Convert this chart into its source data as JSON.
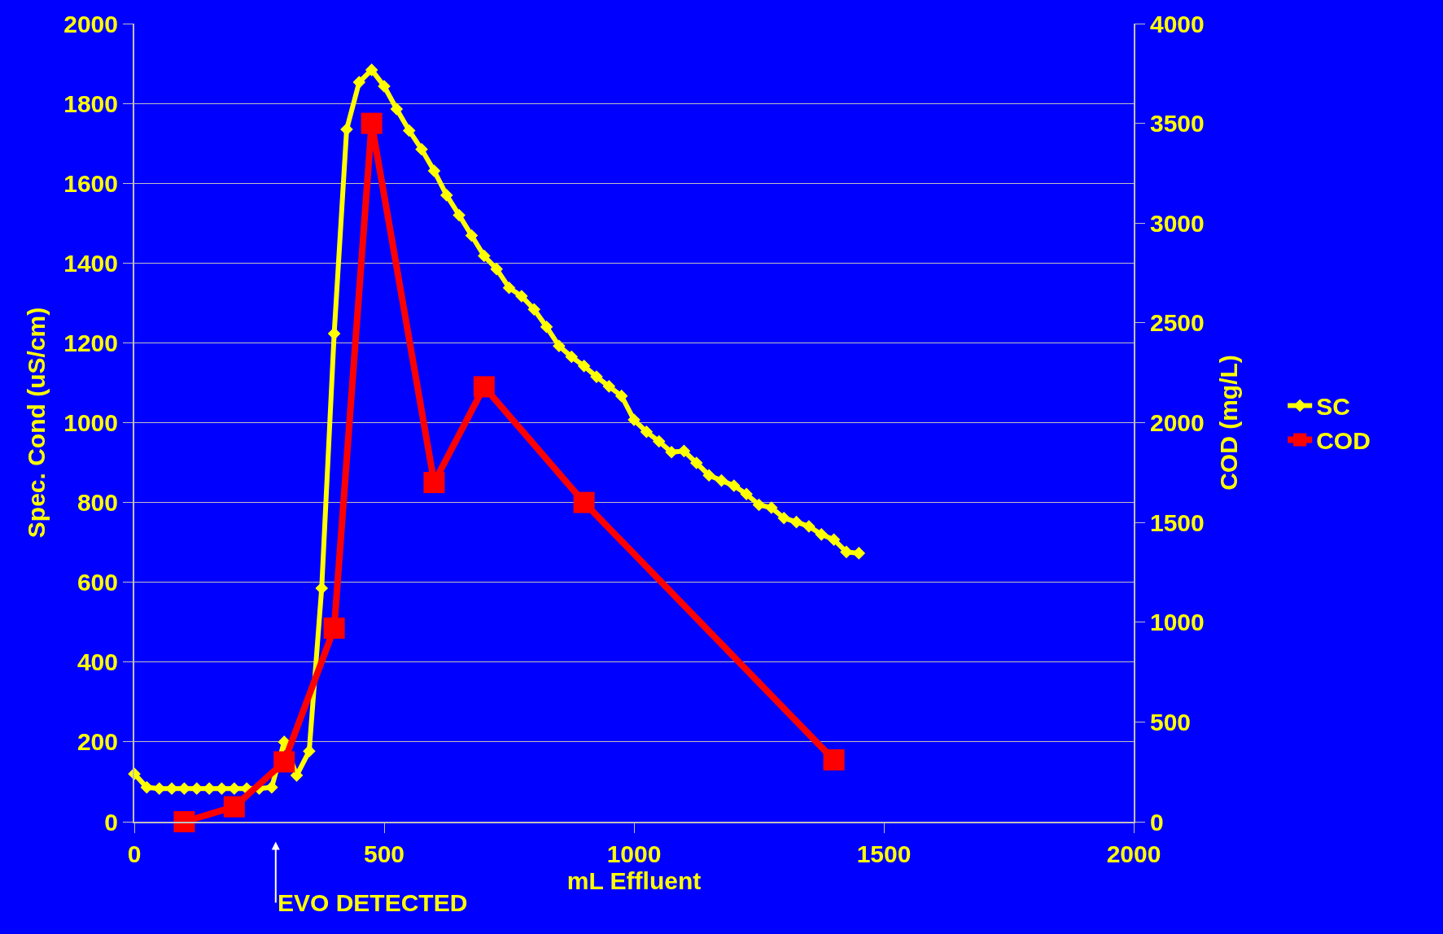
{
  "chart_data": {
    "type": "line",
    "xlabel": "mL Effluent",
    "ylabel": "Spec. Cond (uS/cm)",
    "y2label": "COD (mg/L)",
    "xlim": [
      0,
      2000
    ],
    "xticks": [
      0,
      500,
      1000,
      1500,
      2000
    ],
    "ylim": [
      0,
      2000
    ],
    "yticks": [
      0,
      200,
      400,
      600,
      800,
      1000,
      1200,
      1400,
      1600,
      1800,
      2000
    ],
    "y2lim": [
      0,
      4000
    ],
    "y2ticks": [
      0,
      500,
      1000,
      1500,
      2000,
      2500,
      3000,
      3500,
      4000
    ],
    "grid": "y",
    "legend": "right",
    "series": [
      {
        "name": "SC",
        "color": "#ffff00",
        "marker": "diamond",
        "x": [
          0,
          25,
          50,
          75,
          100,
          125,
          150,
          175,
          200,
          225,
          250,
          275,
          300,
          325,
          350,
          375,
          400,
          425,
          450,
          475,
          500,
          525,
          550,
          575,
          600,
          625,
          650,
          675,
          700,
          725,
          750,
          775,
          800,
          825,
          850,
          875,
          900,
          925,
          950,
          975,
          1000,
          1025,
          1050,
          1075,
          1100,
          1125,
          1150,
          1175,
          1200,
          1225,
          1250,
          1275,
          1300,
          1325,
          1350,
          1375,
          1400,
          1425,
          1450
        ],
        "values": [
          120,
          86,
          83,
          83,
          83,
          83,
          83,
          83,
          83,
          83,
          83,
          86,
          200,
          116,
          177,
          585,
          1223,
          1735,
          1853,
          1884,
          1843,
          1786,
          1732,
          1685,
          1631,
          1570,
          1520,
          1469,
          1418,
          1385,
          1338,
          1317,
          1284,
          1240,
          1192,
          1165,
          1142,
          1115,
          1091,
          1067,
          1007,
          977,
          953,
          926,
          929,
          899,
          868,
          855,
          842,
          821,
          794,
          787,
          761,
          751,
          740,
          720,
          707,
          676,
          673
        ]
      },
      {
        "name": "COD",
        "color": "#ff0000",
        "marker": "square",
        "axis": "y2",
        "x": [
          100,
          200,
          300,
          400,
          475,
          600,
          700,
          900,
          1400
        ],
        "values": [
          0,
          75,
          300,
          970,
          3500,
          1700,
          2180,
          1600,
          310
        ]
      }
    ],
    "annotations": [
      "EVO DETECTED"
    ]
  }
}
